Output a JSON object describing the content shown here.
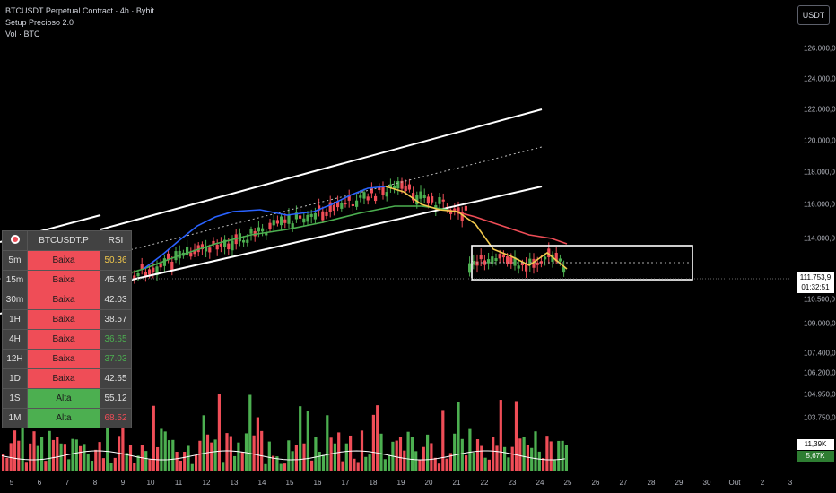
{
  "header": {
    "symbol_line": "BTCUSDT Perpetual Contract · 4h · Bybit",
    "indicator_1": "Setup Precioso 2.0",
    "indicator_2": "Vol · BTC"
  },
  "currency_button": "USDT",
  "price_axis": {
    "labels": [
      "126.000,0",
      "124.000,0",
      "122.000,0",
      "120.000,0",
      "118.000,0",
      "116.000,0",
      "114.000,0",
      "110.500,0",
      "109.000,0",
      "107.400,0",
      "106.200,0",
      "104.950,0",
      "103.750,0"
    ],
    "current_price": "111.753,9",
    "countdown": "01:32:51",
    "volume_value": "11,39K",
    "volume_ma_value": "5,67K"
  },
  "time_axis": {
    "labels": [
      "5",
      "6",
      "7",
      "8",
      "9",
      "10",
      "11",
      "12",
      "13",
      "14",
      "15",
      "16",
      "17",
      "18",
      "19",
      "20",
      "21",
      "22",
      "23",
      "24",
      "25",
      "26",
      "27",
      "28",
      "29",
      "30",
      "Out",
      "2",
      "3"
    ]
  },
  "table": {
    "header": {
      "symbol": "BTCUSDT.P",
      "rsi": "RSI"
    },
    "rows": [
      {
        "tf": "5m",
        "trend": "Baixa",
        "rsi": "50.36",
        "rsi_color": "#f2c94c",
        "up": false
      },
      {
        "tf": "15m",
        "trend": "Baixa",
        "rsi": "45.45",
        "rsi_color": "#e0e0e0",
        "up": false
      },
      {
        "tf": "30m",
        "trend": "Baixa",
        "rsi": "42.03",
        "rsi_color": "#e0e0e0",
        "up": false
      },
      {
        "tf": "1H",
        "trend": "Baixa",
        "rsi": "38.57",
        "rsi_color": "#e0e0e0",
        "up": false
      },
      {
        "tf": "4H",
        "trend": "Baixa",
        "rsi": "36.65",
        "rsi_color": "#4caf50",
        "up": false
      },
      {
        "tf": "12H",
        "trend": "Baixa",
        "rsi": "37.03",
        "rsi_color": "#4caf50",
        "up": false
      },
      {
        "tf": "1D",
        "trend": "Baixa",
        "rsi": "42.65",
        "rsi_color": "#e0e0e0",
        "up": false
      },
      {
        "tf": "1S",
        "trend": "Alta",
        "rsi": "55.12",
        "rsi_color": "#e0e0e0",
        "up": true
      },
      {
        "tf": "1M",
        "trend": "Alta",
        "rsi": "68.52",
        "rsi_color": "#ef4d57",
        "up": true
      }
    ]
  },
  "colors": {
    "up": "#4caf50",
    "down": "#ef4d57",
    "ema_fast_early": "#2962ff",
    "ema_fast_late": "#f2c94c",
    "ema_slow": "#4caf50",
    "ema_slow_late": "#ef4d57"
  }
}
